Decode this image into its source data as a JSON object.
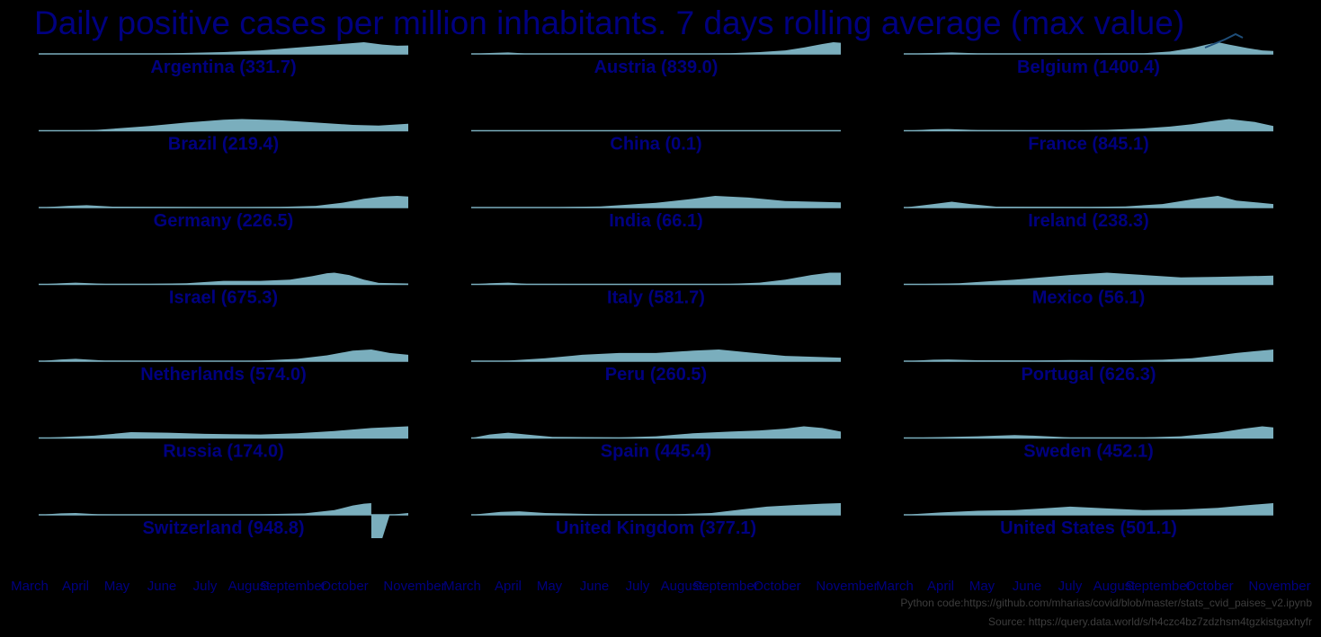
{
  "title": "Daily positive cases per million inhabitants. 7 days rolling average (max value)",
  "colors": {
    "background": "#000000",
    "text": "#000080",
    "fill": "#7aaebd",
    "line": "#7aaebd",
    "peak_line": "#1f4e79",
    "footnote": "#3d3d3d"
  },
  "chart_data": {
    "type": "area",
    "layout": "small multiples 7x3",
    "x_tick_labels": [
      "March",
      "April",
      "May",
      "June",
      "July",
      "August",
      "September",
      "October",
      "November"
    ],
    "unit": "daily cases per million, 7-day rolling average",
    "panels": [
      {
        "label": "Argentina (331.7)",
        "country": "Argentina",
        "max": 331.7,
        "profile": [
          [
            0,
            0
          ],
          [
            0.2,
            0.01
          ],
          [
            0.35,
            0.05
          ],
          [
            0.5,
            0.15
          ],
          [
            0.6,
            0.3
          ],
          [
            0.7,
            0.55
          ],
          [
            0.8,
            0.8
          ],
          [
            0.88,
            1.0
          ],
          [
            0.93,
            0.8
          ],
          [
            0.97,
            0.7
          ],
          [
            1,
            0.72
          ]
        ]
      },
      {
        "label": "Austria (839.0)",
        "country": "Austria",
        "max": 839.0,
        "profile": [
          [
            0,
            0
          ],
          [
            0.05,
            0.08
          ],
          [
            0.1,
            0.12
          ],
          [
            0.15,
            0.03
          ],
          [
            0.6,
            0.03
          ],
          [
            0.7,
            0.06
          ],
          [
            0.78,
            0.15
          ],
          [
            0.85,
            0.3
          ],
          [
            0.9,
            0.55
          ],
          [
            0.95,
            0.85
          ],
          [
            0.98,
            1.0
          ],
          [
            1,
            0.95
          ]
        ]
      },
      {
        "label": "Belgium (1400.4)",
        "country": "Belgium",
        "max": 1400.4,
        "profile": [
          [
            0,
            0
          ],
          [
            0.08,
            0.08
          ],
          [
            0.13,
            0.12
          ],
          [
            0.2,
            0.05
          ],
          [
            0.35,
            0.02
          ],
          [
            0.45,
            0.02
          ],
          [
            0.55,
            0.05
          ],
          [
            0.65,
            0.06
          ],
          [
            0.72,
            0.2
          ],
          [
            0.78,
            0.5
          ],
          [
            0.82,
            0.8
          ],
          [
            0.85,
            1.0
          ],
          [
            0.88,
            0.8
          ],
          [
            0.93,
            0.5
          ],
          [
            0.97,
            0.3
          ],
          [
            1,
            0.25
          ]
        ]
      },
      {
        "label": "Brazil (219.4)",
        "country": "Brazil",
        "max": 219.4,
        "profile": [
          [
            0,
            0
          ],
          [
            0.15,
            0.05
          ],
          [
            0.3,
            0.4
          ],
          [
            0.4,
            0.7
          ],
          [
            0.5,
            0.95
          ],
          [
            0.55,
            1.0
          ],
          [
            0.65,
            0.9
          ],
          [
            0.75,
            0.7
          ],
          [
            0.85,
            0.5
          ],
          [
            0.92,
            0.45
          ],
          [
            1,
            0.6
          ]
        ]
      },
      {
        "label": "China (0.1)",
        "country": "China",
        "max": 0.1,
        "profile": [
          [
            0,
            0
          ],
          [
            1,
            0
          ]
        ]
      },
      {
        "label": "France (845.1)",
        "country": "France",
        "max": 845.1,
        "profile": [
          [
            0,
            0
          ],
          [
            0.08,
            0.12
          ],
          [
            0.12,
            0.15
          ],
          [
            0.2,
            0.05
          ],
          [
            0.45,
            0.02
          ],
          [
            0.55,
            0.08
          ],
          [
            0.65,
            0.2
          ],
          [
            0.72,
            0.35
          ],
          [
            0.78,
            0.55
          ],
          [
            0.83,
            0.8
          ],
          [
            0.88,
            1.0
          ],
          [
            0.92,
            0.85
          ],
          [
            0.95,
            0.75
          ],
          [
            1,
            0.4
          ]
        ]
      },
      {
        "label": "Germany (226.5)",
        "country": "Germany",
        "max": 226.5,
        "profile": [
          [
            0,
            0
          ],
          [
            0.08,
            0.15
          ],
          [
            0.13,
            0.2
          ],
          [
            0.2,
            0.08
          ],
          [
            0.5,
            0.03
          ],
          [
            0.65,
            0.06
          ],
          [
            0.75,
            0.15
          ],
          [
            0.82,
            0.4
          ],
          [
            0.88,
            0.75
          ],
          [
            0.93,
            0.95
          ],
          [
            0.97,
            1.0
          ],
          [
            1,
            0.95
          ]
        ]
      },
      {
        "label": "India (66.1)",
        "country": "India",
        "max": 66.1,
        "profile": [
          [
            0,
            0
          ],
          [
            0.2,
            0.02
          ],
          [
            0.35,
            0.1
          ],
          [
            0.5,
            0.4
          ],
          [
            0.6,
            0.75
          ],
          [
            0.66,
            1.0
          ],
          [
            0.75,
            0.85
          ],
          [
            0.85,
            0.55
          ],
          [
            1,
            0.45
          ]
        ]
      },
      {
        "label": "Ireland (238.3)",
        "country": "Ireland",
        "max": 238.3,
        "profile": [
          [
            0,
            0
          ],
          [
            0.08,
            0.3
          ],
          [
            0.13,
            0.5
          ],
          [
            0.18,
            0.3
          ],
          [
            0.25,
            0.08
          ],
          [
            0.5,
            0.05
          ],
          [
            0.6,
            0.1
          ],
          [
            0.7,
            0.3
          ],
          [
            0.8,
            0.8
          ],
          [
            0.85,
            1.0
          ],
          [
            0.9,
            0.6
          ],
          [
            1,
            0.3
          ]
        ]
      },
      {
        "label": "Israel (675.3)",
        "country": "Israel",
        "max": 675.3,
        "profile": [
          [
            0,
            0
          ],
          [
            0.06,
            0.1
          ],
          [
            0.1,
            0.15
          ],
          [
            0.18,
            0.05
          ],
          [
            0.3,
            0.05
          ],
          [
            0.4,
            0.1
          ],
          [
            0.5,
            0.3
          ],
          [
            0.6,
            0.3
          ],
          [
            0.68,
            0.4
          ],
          [
            0.74,
            0.7
          ],
          [
            0.78,
            0.95
          ],
          [
            0.8,
            1.0
          ],
          [
            0.84,
            0.8
          ],
          [
            0.88,
            0.4
          ],
          [
            0.92,
            0.12
          ],
          [
            1,
            0.08
          ]
        ]
      },
      {
        "label": "Italy (581.7)",
        "country": "Italy",
        "max": 581.7,
        "profile": [
          [
            0,
            0
          ],
          [
            0.05,
            0.1
          ],
          [
            0.1,
            0.15
          ],
          [
            0.15,
            0.05
          ],
          [
            0.6,
            0.02
          ],
          [
            0.7,
            0.05
          ],
          [
            0.78,
            0.15
          ],
          [
            0.85,
            0.4
          ],
          [
            0.92,
            0.8
          ],
          [
            0.97,
            1.0
          ],
          [
            1,
            1.0
          ]
        ]
      },
      {
        "label": "Mexico (56.1)",
        "country": "Mexico",
        "max": 56.1,
        "profile": [
          [
            0,
            0
          ],
          [
            0.15,
            0.1
          ],
          [
            0.3,
            0.4
          ],
          [
            0.45,
            0.8
          ],
          [
            0.55,
            1.0
          ],
          [
            0.65,
            0.8
          ],
          [
            0.75,
            0.6
          ],
          [
            0.85,
            0.65
          ],
          [
            1,
            0.75
          ]
        ]
      },
      {
        "label": "Netherlands (574.0)",
        "country": "Netherlands",
        "max": 574.0,
        "profile": [
          [
            0,
            0
          ],
          [
            0.06,
            0.15
          ],
          [
            0.1,
            0.2
          ],
          [
            0.18,
            0.05
          ],
          [
            0.45,
            0.02
          ],
          [
            0.6,
            0.05
          ],
          [
            0.7,
            0.2
          ],
          [
            0.78,
            0.5
          ],
          [
            0.85,
            0.9
          ],
          [
            0.9,
            1.0
          ],
          [
            0.95,
            0.7
          ],
          [
            1,
            0.55
          ]
        ]
      },
      {
        "label": "Peru (260.5)",
        "country": "Peru",
        "max": 260.5,
        "profile": [
          [
            0,
            0
          ],
          [
            0.1,
            0.05
          ],
          [
            0.2,
            0.25
          ],
          [
            0.3,
            0.55
          ],
          [
            0.4,
            0.7
          ],
          [
            0.5,
            0.7
          ],
          [
            0.6,
            0.9
          ],
          [
            0.67,
            1.0
          ],
          [
            0.75,
            0.75
          ],
          [
            0.85,
            0.45
          ],
          [
            1,
            0.3
          ]
        ]
      },
      {
        "label": "Portugal (626.3)",
        "country": "Portugal",
        "max": 626.3,
        "profile": [
          [
            0,
            0
          ],
          [
            0.08,
            0.12
          ],
          [
            0.12,
            0.15
          ],
          [
            0.2,
            0.08
          ],
          [
            0.35,
            0.06
          ],
          [
            0.45,
            0.1
          ],
          [
            0.6,
            0.08
          ],
          [
            0.7,
            0.12
          ],
          [
            0.78,
            0.25
          ],
          [
            0.85,
            0.5
          ],
          [
            0.9,
            0.7
          ],
          [
            0.95,
            0.85
          ],
          [
            1,
            1.0
          ]
        ]
      },
      {
        "label": "Russia (174.0)",
        "country": "Russia",
        "max": 174.0,
        "profile": [
          [
            0,
            0
          ],
          [
            0.15,
            0.2
          ],
          [
            0.25,
            0.5
          ],
          [
            0.35,
            0.45
          ],
          [
            0.45,
            0.35
          ],
          [
            0.6,
            0.3
          ],
          [
            0.7,
            0.4
          ],
          [
            0.8,
            0.6
          ],
          [
            0.9,
            0.85
          ],
          [
            1,
            1.0
          ]
        ]
      },
      {
        "label": "Spain (445.4)",
        "country": "Spain",
        "max": 445.4,
        "profile": [
          [
            0,
            0
          ],
          [
            0.05,
            0.3
          ],
          [
            0.1,
            0.45
          ],
          [
            0.15,
            0.3
          ],
          [
            0.22,
            0.1
          ],
          [
            0.4,
            0.05
          ],
          [
            0.5,
            0.15
          ],
          [
            0.6,
            0.4
          ],
          [
            0.7,
            0.55
          ],
          [
            0.78,
            0.65
          ],
          [
            0.85,
            0.8
          ],
          [
            0.9,
            1.0
          ],
          [
            0.95,
            0.85
          ],
          [
            1,
            0.55
          ]
        ]
      },
      {
        "label": "Sweden (452.1)",
        "country": "Sweden",
        "max": 452.1,
        "profile": [
          [
            0,
            0
          ],
          [
            0.1,
            0.08
          ],
          [
            0.2,
            0.15
          ],
          [
            0.3,
            0.25
          ],
          [
            0.35,
            0.2
          ],
          [
            0.45,
            0.05
          ],
          [
            0.65,
            0.05
          ],
          [
            0.75,
            0.15
          ],
          [
            0.85,
            0.45
          ],
          [
            0.92,
            0.8
          ],
          [
            0.97,
            1.0
          ],
          [
            1,
            0.9
          ]
        ]
      },
      {
        "label": "Switzerland (948.8)",
        "country": "Switzerland",
        "max": 948.8,
        "profile": [
          [
            0,
            0
          ],
          [
            0.06,
            0.12
          ],
          [
            0.1,
            0.15
          ],
          [
            0.16,
            0.05
          ],
          [
            0.4,
            0.02
          ],
          [
            0.6,
            0.05
          ],
          [
            0.72,
            0.12
          ],
          [
            0.8,
            0.4
          ],
          [
            0.85,
            0.8
          ],
          [
            0.88,
            0.95
          ],
          [
            0.9,
            1.0
          ],
          [
            0.9,
            -2.0
          ],
          [
            0.93,
            -2.0
          ],
          [
            0.95,
            0.0
          ],
          [
            1,
            0.15
          ]
        ]
      },
      {
        "label": "United Kingdom (377.1)",
        "country": "United Kingdom",
        "max": 377.1,
        "profile": [
          [
            0,
            0
          ],
          [
            0.08,
            0.25
          ],
          [
            0.13,
            0.3
          ],
          [
            0.2,
            0.15
          ],
          [
            0.35,
            0.05
          ],
          [
            0.55,
            0.05
          ],
          [
            0.65,
            0.15
          ],
          [
            0.73,
            0.45
          ],
          [
            0.8,
            0.7
          ],
          [
            0.88,
            0.85
          ],
          [
            0.95,
            0.95
          ],
          [
            1,
            1.0
          ]
        ]
      },
      {
        "label": "United States (501.1)",
        "country": "United States",
        "max": 501.1,
        "profile": [
          [
            0,
            0
          ],
          [
            0.1,
            0.2
          ],
          [
            0.2,
            0.35
          ],
          [
            0.3,
            0.4
          ],
          [
            0.4,
            0.6
          ],
          [
            0.45,
            0.7
          ],
          [
            0.55,
            0.55
          ],
          [
            0.65,
            0.4
          ],
          [
            0.75,
            0.45
          ],
          [
            0.85,
            0.6
          ],
          [
            0.92,
            0.8
          ],
          [
            1,
            1.0
          ]
        ]
      }
    ]
  },
  "footnotes": {
    "code": "Python code:https://github.com/mharias/covid/blob/master/stats_cvid_paises_v2.ipynb",
    "source": "Source: https://query.data.world/s/h4czc4bz7zdzhsm4tgzkistgaxhyfr"
  }
}
